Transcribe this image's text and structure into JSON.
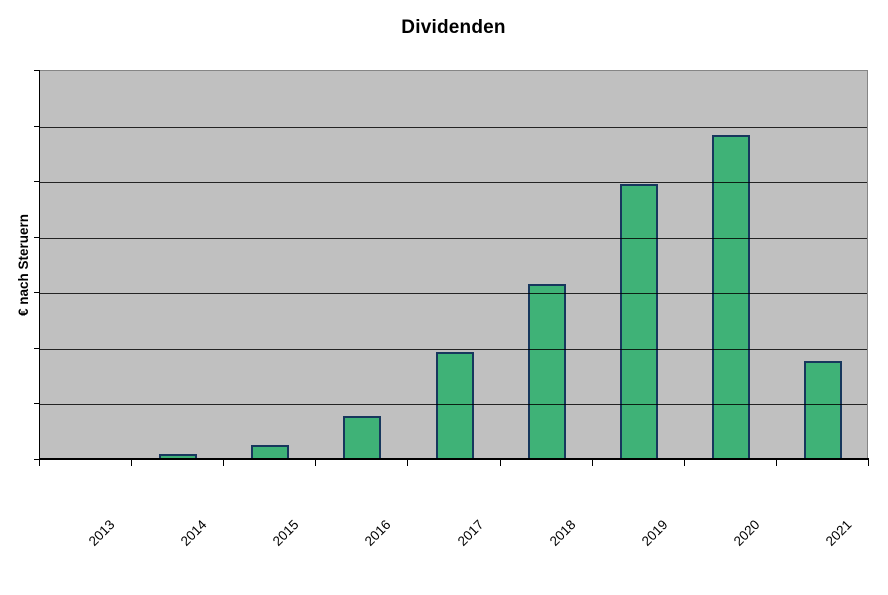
{
  "title": "Dividenden",
  "y_axis": {
    "label": "€ nach Steruern",
    "tick_labels": "none"
  },
  "chart_data": {
    "type": "bar",
    "title": "Dividenden",
    "categories": [
      "2013",
      "2014",
      "2015",
      "2016",
      "2017",
      "2018",
      "2019",
      "2020",
      "2021"
    ],
    "values": [
      0,
      0.07,
      0.23,
      0.76,
      1.91,
      3.13,
      4.93,
      5.81,
      1.75
    ],
    "value_note": "y-axis shows no numeric tick labels; values estimated in gridline units (1 unit = 1 horizontal band)",
    "xlabel": "",
    "ylabel": "€ nach Steruern",
    "ylim": [
      0,
      7
    ],
    "gridline_intervals": 7,
    "grid": "horizontal black lines on gray plot background",
    "legend": "none",
    "x_tick_label_rotation_deg": 45,
    "colors": {
      "page_bg": "#FFFFFF",
      "plot_bg": "#C0C0C0",
      "bar_fill": "#3FB277",
      "bar_border": "#17375D",
      "gridline": "#000000",
      "plot_border": "#858585",
      "axis": "#000000",
      "text": "#000000"
    }
  }
}
